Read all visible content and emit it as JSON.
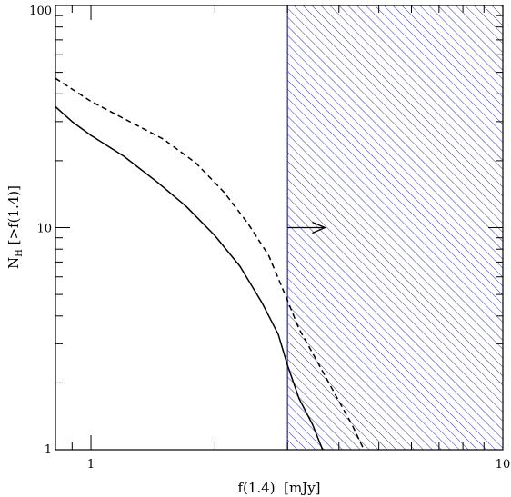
{
  "chart_data": {
    "type": "line",
    "xlabel": "f(1.4)  [mJy]",
    "ylabel_main": "N",
    "ylabel_sub": "H",
    "ylabel_rest": " [>f(1.4)]",
    "xscale": "log",
    "yscale": "log",
    "xlim": [
      0.82,
      10
    ],
    "ylim": [
      1,
      100
    ],
    "x_tick_labels": [
      {
        "value": 1,
        "label": "1"
      },
      {
        "value": 10,
        "label": "10"
      }
    ],
    "y_tick_labels": [
      {
        "value": 1,
        "label": "1"
      },
      {
        "value": 10,
        "label": "10"
      },
      {
        "value": 100,
        "label": "100"
      }
    ],
    "series": [
      {
        "style": "solid",
        "x": [
          0.82,
          0.9,
          1.0,
          1.2,
          1.45,
          1.7,
          2.0,
          2.3,
          2.6,
          2.85,
          3.0,
          3.2,
          3.45,
          3.65
        ],
        "y": [
          35,
          30,
          26,
          21,
          16,
          12.5,
          9.2,
          6.7,
          4.6,
          3.3,
          2.4,
          1.7,
          1.3,
          1.0
        ]
      },
      {
        "style": "dashed",
        "x": [
          0.82,
          0.9,
          1.0,
          1.2,
          1.5,
          1.8,
          2.1,
          2.4,
          2.7,
          3.0,
          3.2,
          3.5,
          3.9,
          4.3,
          4.6
        ],
        "y": [
          47,
          42,
          37,
          31,
          25,
          19.5,
          14.5,
          10.5,
          7.5,
          4.7,
          3.5,
          2.6,
          1.8,
          1.3,
          1.0
        ]
      }
    ],
    "shaded_region": {
      "x_from": 3.0,
      "x_to": 10,
      "color": "#3333aa",
      "pattern": "diagonal-hatch"
    },
    "arrow": {
      "x_from": 3.0,
      "x_to": 3.7,
      "y": 10
    },
    "colors": {
      "curves": "#000000",
      "hatch": "#3333aa"
    }
  }
}
